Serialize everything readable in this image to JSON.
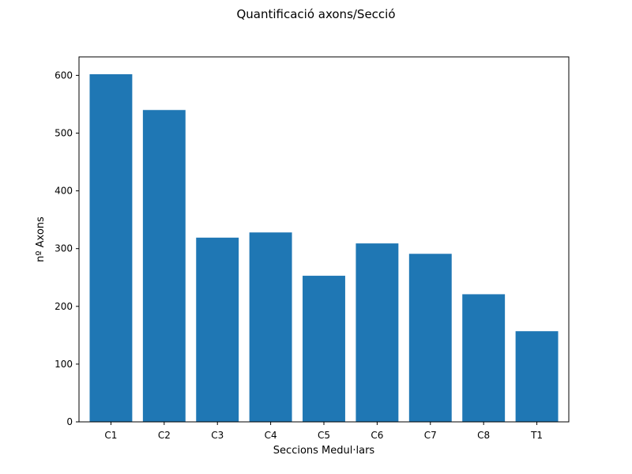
{
  "chart_data": {
    "type": "bar",
    "title": "Quantificació axons/Secció",
    "xlabel": "Seccions Medul·lars",
    "ylabel": "nº Axons",
    "categories": [
      "C1",
      "C2",
      "C3",
      "C4",
      "C5",
      "C6",
      "C7",
      "C8",
      "T1"
    ],
    "values": [
      602,
      540,
      319,
      328,
      253,
      309,
      291,
      221,
      157
    ],
    "ylim": [
      0,
      632
    ],
    "yticks": [
      0,
      100,
      200,
      300,
      400,
      500,
      600
    ],
    "grid": false,
    "legend": "none",
    "bar_color": "#1f77b4"
  }
}
